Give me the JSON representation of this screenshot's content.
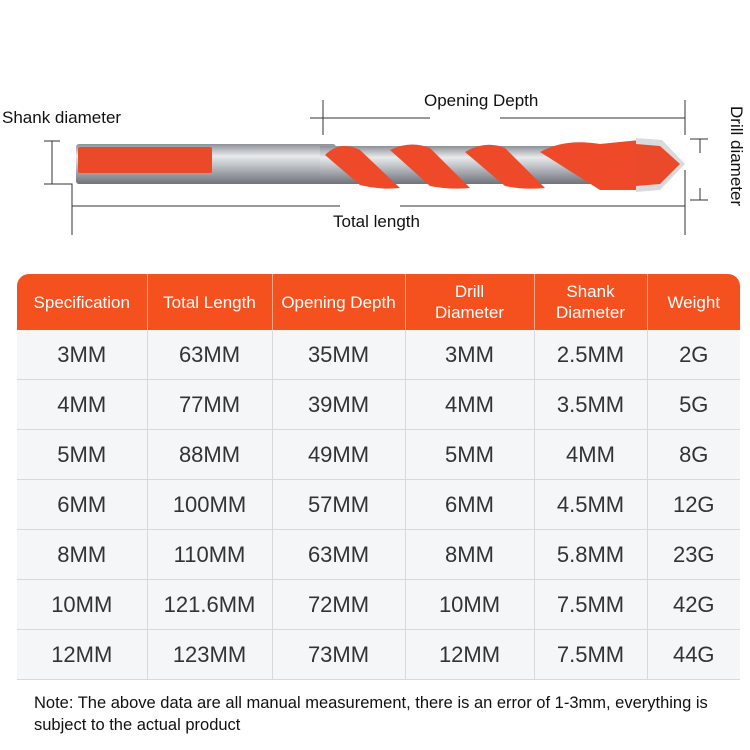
{
  "diagram": {
    "shank_diameter_label": "Shank diameter",
    "opening_depth_label": "Opening Depth",
    "drill_diameter_label": "Drill diameter",
    "total_length_label": "Total length",
    "colors": {
      "accent": "#f4511e",
      "metal": "#b8bcc2"
    }
  },
  "table": {
    "headers": [
      "Specification",
      "Total Length",
      "Opening Depth",
      "Drill Diameter",
      "Shank Diameter",
      "Weight"
    ],
    "rows": [
      [
        "3MM",
        "63MM",
        "35MM",
        "3MM",
        "2.5MM",
        "2G"
      ],
      [
        "4MM",
        "77MM",
        "39MM",
        "4MM",
        "3.5MM",
        "5G"
      ],
      [
        "5MM",
        "88MM",
        "49MM",
        "5MM",
        "4MM",
        "8G"
      ],
      [
        "6MM",
        "100MM",
        "57MM",
        "6MM",
        "4.5MM",
        "12G"
      ],
      [
        "8MM",
        "110MM",
        "63MM",
        "8MM",
        "5.8MM",
        "23G"
      ],
      [
        "10MM",
        "121.6MM",
        "72MM",
        "10MM",
        "7.5MM",
        "42G"
      ],
      [
        "12MM",
        "123MM",
        "73MM",
        "12MM",
        "7.5MM",
        "44G"
      ]
    ]
  },
  "note": "Note: The above data are all manual measurement, there is an error of 1-3mm, everything is subject to the actual product"
}
